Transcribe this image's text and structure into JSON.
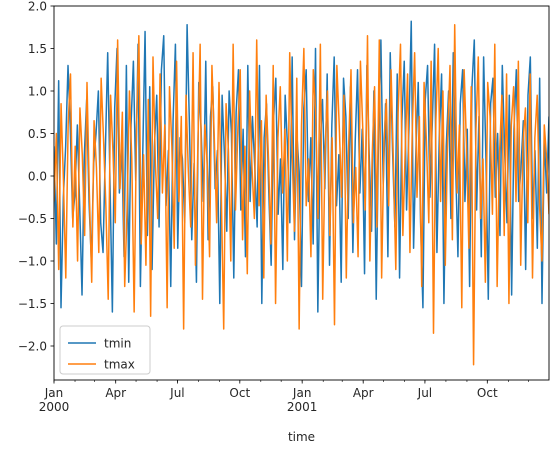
{
  "chart_data": {
    "type": "line",
    "xlabel": "time",
    "ylabel": "",
    "title": "",
    "x_start": "2000-01-01",
    "x_end": "2001-12-31",
    "x_frequency": "daily",
    "ylim": [
      -2.4,
      2.0
    ],
    "y_ticks": [
      "2.0",
      "1.5",
      "1.0",
      "0.5",
      "0.0",
      "−0.5",
      "−1.0",
      "−1.5",
      "−2.0"
    ],
    "x_ticks": [
      {
        "label": "Jan",
        "sublabel": "2000",
        "date": "2000-01-01"
      },
      {
        "label": "Apr",
        "sublabel": "",
        "date": "2000-04-01"
      },
      {
        "label": "Jul",
        "sublabel": "",
        "date": "2000-07-01"
      },
      {
        "label": "Oct",
        "sublabel": "",
        "date": "2000-10-01"
      },
      {
        "label": "Jan",
        "sublabel": "2001",
        "date": "2001-01-01"
      },
      {
        "label": "Apr",
        "sublabel": "",
        "date": "2001-04-01"
      },
      {
        "label": "Jul",
        "sublabel": "",
        "date": "2001-07-01"
      },
      {
        "label": "Oct",
        "sublabel": "",
        "date": "2001-10-01"
      }
    ],
    "legend_position": "lower-left",
    "series": [
      {
        "name": "tmin",
        "color": "#1f77b4",
        "values": [
          0.35,
          -0.8,
          1.12,
          -1.55,
          -0.25,
          0.35,
          1.3,
          0.55,
          -0.5,
          -0.2,
          0.6,
          -0.35,
          -1.4,
          0.25,
          0.9,
          -0.3,
          -1.0,
          0.15,
          0.5,
          1.0,
          -0.55,
          -0.9,
          0.3,
          1.45,
          -0.1,
          -1.6,
          0.8,
          1.5,
          -0.2,
          0.4,
          -0.95,
          1.3,
          -1.25,
          0.6,
          1.35,
          -0.05,
          1.55,
          -1.3,
          0.25,
          1.7,
          -0.7,
          1.05,
          -1.1,
          0.35,
          0.95,
          -0.6,
          1.25,
          1.65,
          -0.35,
          0.3,
          -1.3,
          0.65,
          1.55,
          -0.85,
          0.45,
          0.2,
          -0.55,
          1.78,
          0.6,
          -0.75,
          0.15,
          -1.25,
          1.1,
          0.55,
          -0.3,
          1.35,
          -0.75,
          0.7,
          1.05,
          -0.15,
          0.3,
          -1.5,
          0.95,
          0.25,
          -0.65,
          1.0,
          0.5,
          -1.2,
          0.75,
          1.25,
          -0.4,
          0.55,
          -0.95,
          1.3,
          -0.3,
          0.7,
          0.1,
          -0.6,
          1.3,
          -1.5,
          0.45,
          0.85,
          -0.2,
          -1.05,
          0.65,
          1.15,
          -0.45,
          0.2,
          -1.1,
          0.95,
          0.35,
          -0.55,
          1.4,
          -0.75,
          0.5,
          0.05,
          -1.3,
          0.8,
          1.25,
          -0.3,
          0.45,
          -0.8,
          1.5,
          -1.6,
          0.35,
          0.9,
          -0.15,
          1.2,
          -1.05,
          0.6,
          1.4,
          -0.35,
          0.25,
          -1.25,
          1.15,
          0.7,
          -0.5,
          1.05,
          -0.9,
          0.4,
          1.25,
          -0.2,
          0.55,
          -1.15,
          1.3,
          0.25,
          -0.65,
          1.0,
          -1.45,
          0.5,
          1.6,
          -0.1,
          0.85,
          -0.95,
          1.45,
          0.3,
          -0.6,
          1.2,
          -1.2,
          0.65,
          1.35,
          -0.4,
          0.55,
          1.82,
          -0.85,
          0.3,
          1.1,
          -0.55,
          -1.55,
          0.9,
          1.3,
          -0.25,
          0.6,
          1.55,
          -0.9,
          0.45,
          1.2,
          -1.5,
          0.35,
          1.0,
          -0.5,
          1.45,
          0.15,
          -0.95,
          0.85,
          1.25,
          -0.3,
          0.55,
          -1.3,
          1.05,
          1.6,
          -0.4,
          0.7,
          -0.95,
          1.4,
          0.2,
          -1.45,
          0.85,
          1.15,
          -0.25,
          0.5,
          -0.7,
          1.3,
          0.3,
          -0.55,
          0.95,
          -1.4,
          0.55,
          1.25,
          -0.3,
          0.1,
          0.65,
          -1.1,
          0.95,
          1.4,
          -0.5,
          0.3,
          -0.85,
          1.15,
          -1.5,
          0.45,
          -0.2,
          0.7
        ]
      },
      {
        "name": "tmax",
        "color": "#ff7f0e",
        "values": [
          -0.3,
          0.5,
          -1.1,
          0.85,
          -0.05,
          -1.2,
          0.6,
          1.2,
          -0.6,
          0.35,
          -1.0,
          0.8,
          0.25,
          -0.7,
          1.1,
          -0.2,
          -1.25,
          0.65,
          0.1,
          -0.9,
          1.15,
          0.45,
          -0.35,
          -1.45,
          0.95,
          0.3,
          -0.55,
          1.6,
          -0.15,
          0.75,
          -1.3,
          -0.4,
          1.0,
          0.2,
          -1.6,
          0.55,
          1.65,
          -0.8,
          0.25,
          -1.05,
          0.9,
          -1.65,
          1.4,
          0.15,
          -0.5,
          1.2,
          -0.2,
          0.6,
          -1.55,
          1.05,
          0.35,
          -0.85,
          1.35,
          -0.3,
          0.7,
          -1.8,
          0.95,
          0.05,
          -0.6,
          1.45,
          -1.05,
          0.3,
          1.55,
          -1.45,
          0.6,
          0.15,
          -0.95,
          1.3,
          0.45,
          -0.55,
          1.1,
          -0.25,
          -1.8,
          0.85,
          0.3,
          -1.0,
          1.55,
          -0.4,
          0.55,
          1.25,
          -0.75,
          0.35,
          -1.15,
          1.0,
          0.1,
          -0.5,
          1.6,
          -0.35,
          0.65,
          -1.2,
          0.95,
          0.2,
          -0.8,
          1.3,
          -1.5,
          0.45,
          1.05,
          -0.2,
          0.55,
          -1.0,
          1.45,
          0.3,
          -0.65,
          1.15,
          -1.8,
          0.6,
          1.5,
          -0.35,
          0.2,
          -0.95,
          1.25,
          0.75,
          -0.5,
          1.55,
          -1.45,
          0.3,
          1.0,
          -0.7,
          0.45,
          -1.75,
          1.3,
          0.6,
          -0.25,
          0.95,
          -1.2,
          0.35,
          1.25,
          -0.55,
          0.1,
          -0.95,
          1.35,
          0.55,
          -0.4,
          1.65,
          -1.0,
          0.25,
          1.05,
          -0.6,
          1.6,
          -1.2,
          0.4,
          0.9,
          -0.35,
          1.25,
          0.15,
          -1.1,
          0.75,
          1.55,
          -0.7,
          0.3,
          1.2,
          -0.9,
          0.55,
          1.45,
          -0.25,
          0.7,
          -1.3,
          1.1,
          0.4,
          -0.55,
          1.35,
          -1.85,
          0.65,
          1.5,
          -0.3,
          1.0,
          -1.05,
          0.45,
          1.3,
          -0.75,
          1.78,
          -0.2,
          0.6,
          -1.55,
          1.25,
          0.35,
          -0.85,
          1.05,
          -2.22,
          0.55,
          1.4,
          -0.5,
          0.2,
          -1.25,
          1.1,
          0.7,
          -0.45,
          1.55,
          -1.3,
          0.25,
          0.95,
          -0.7,
          1.2,
          -1.5,
          0.6,
          1.05,
          -0.3,
          1.35,
          -1.05,
          0.4,
          0.8,
          -0.55,
          1.2,
          -1.2,
          0.45,
          0.95,
          -0.35,
          -1.0,
          0.6,
          0.2,
          -0.45
        ]
      }
    ]
  }
}
